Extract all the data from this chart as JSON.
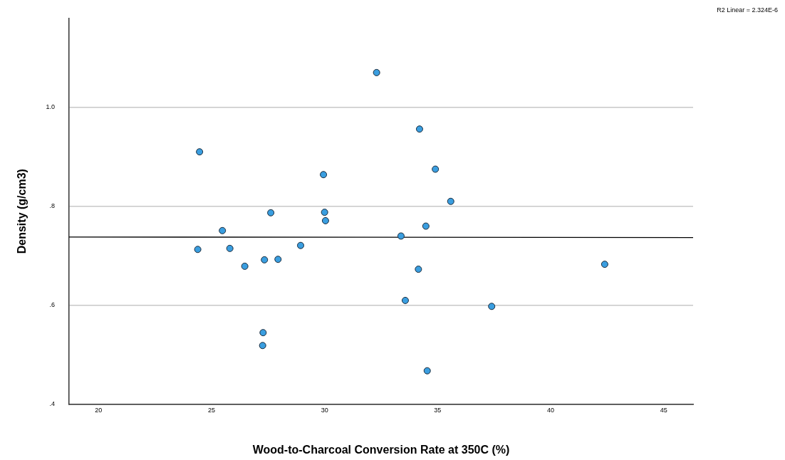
{
  "chart_data": {
    "type": "scatter",
    "xlabel": "Wood-to-Charcoal Conversion Rate at 350C (%)",
    "ylabel": "Density (g/cm3)",
    "annotations": [
      "R2 Linear = 2.324E-6"
    ],
    "xlim": [
      18.7,
      46.3
    ],
    "xticks": [
      20,
      25,
      30,
      35,
      40,
      45
    ],
    "ylim": [
      0.4,
      1.18
    ],
    "yticks": [
      {
        "value": 0.4,
        "label": ".4"
      },
      {
        "value": 0.6,
        "label": ".6"
      },
      {
        "value": 0.8,
        "label": ".8"
      },
      {
        "value": 1.0,
        "label": "1.0"
      }
    ],
    "grid": "y",
    "legend": false,
    "marker": "circle",
    "series": [
      {
        "color": "#3a9ee0",
        "x": [
          32.3,
          34.2,
          24.47,
          34.9,
          29.95,
          35.58,
          27.62,
          30.0,
          30.04,
          25.48,
          34.48,
          33.38,
          24.39,
          25.81,
          28.94,
          27.34,
          27.94,
          26.47,
          34.15,
          33.57,
          27.28,
          27.26,
          34.54,
          37.39,
          42.39
        ],
        "values": [
          1.07,
          0.956,
          0.91,
          0.875,
          0.864,
          0.81,
          0.787,
          0.788,
          0.771,
          0.751,
          0.76,
          0.74,
          0.713,
          0.715,
          0.721,
          0.692,
          0.693,
          0.679,
          0.673,
          0.61,
          0.545,
          0.519,
          0.468,
          0.598,
          0.683
        ]
      },
      {
        "type": "line",
        "color": "#000000",
        "marker": "none",
        "x": [
          18.7,
          46.3
        ],
        "values": [
          0.738,
          0.737
        ]
      }
    ]
  }
}
